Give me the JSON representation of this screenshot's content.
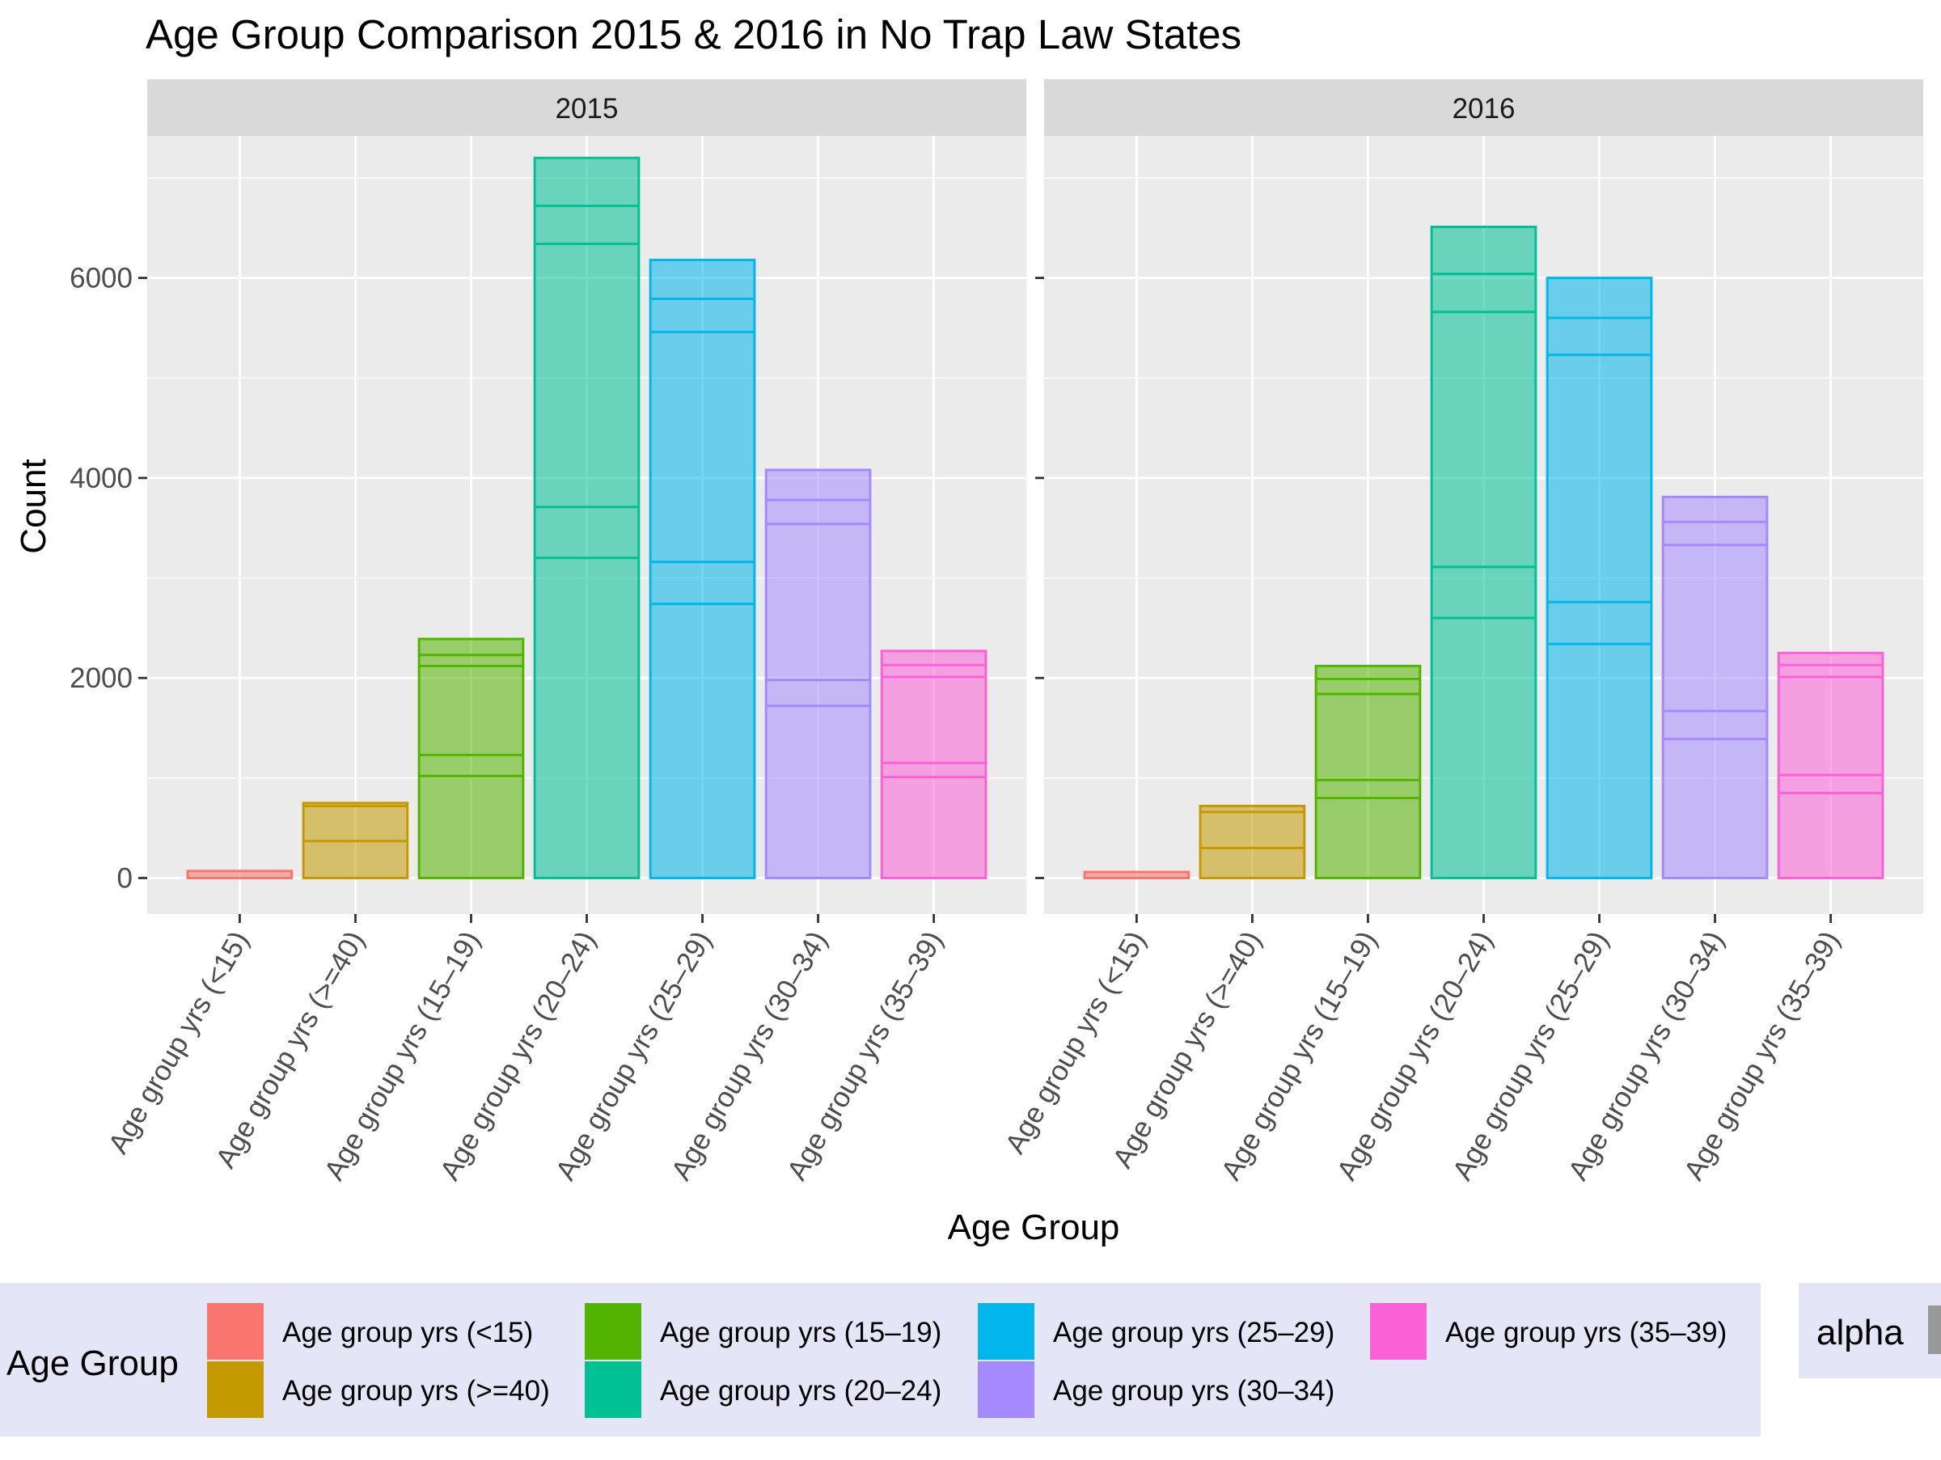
{
  "chart_data": {
    "type": "bar",
    "title": "Age Group Comparison 2015 & 2016 in No Trap Law States",
    "xlabel": "Age Group",
    "ylabel": "Count",
    "ylim": [
      -360,
      7420
    ],
    "yticks": [
      0,
      2000,
      4000,
      6000
    ],
    "grid": true,
    "legend_position": "bottom",
    "categories": [
      "Age group yrs (<15)",
      "Age group yrs (>=40)",
      "Age group yrs (15–19)",
      "Age group yrs (20–24)",
      "Age group yrs (25–29)",
      "Age group yrs (30–34)",
      "Age group yrs (35–39)"
    ],
    "colors": [
      "#F8766D",
      "#C49A00",
      "#53B400",
      "#00C094",
      "#00B6EB",
      "#A58AFF",
      "#FB61D7"
    ],
    "panels": [
      {
        "label": "2015",
        "values": [
          70,
          750,
          2390,
          7200,
          6180,
          4080,
          2270
        ],
        "segment_lines": [
          [],
          [
            370,
            720
          ],
          [
            1020,
            1230,
            2120,
            2230
          ],
          [
            3200,
            3710,
            6340,
            6720
          ],
          [
            2740,
            3160,
            5460,
            5790
          ],
          [
            1720,
            1980,
            3540,
            3780
          ],
          [
            1010,
            1150,
            2010,
            2130
          ]
        ]
      },
      {
        "label": "2016",
        "values": [
          60,
          720,
          2120,
          6510,
          6000,
          3810,
          2250
        ],
        "segment_lines": [
          [],
          [
            300,
            660
          ],
          [
            800,
            980,
            1840,
            1990
          ],
          [
            2600,
            3110,
            5660,
            6040
          ],
          [
            2340,
            2760,
            5230,
            5600
          ],
          [
            1390,
            1670,
            3330,
            3560
          ],
          [
            850,
            1030,
            2010,
            2130
          ]
        ]
      }
    ],
    "legend": {
      "title": "Age Group",
      "items": [
        "Age group yrs (<15)",
        "Age group yrs (>=40)",
        "Age group yrs (15–19)",
        "Age group yrs (20–24)",
        "Age group yrs (25–29)",
        "Age group yrs (30–34)",
        "Age group yrs (35–39)"
      ]
    },
    "alpha_legend_title": "alpha"
  }
}
